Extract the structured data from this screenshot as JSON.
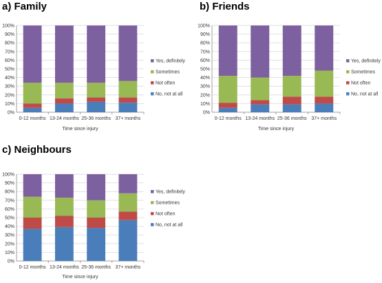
{
  "colors": {
    "no_not_at_all": "#4a7ebb",
    "not_often": "#be4b48",
    "sometimes": "#98b954",
    "yes_definitely": "#7d60a0"
  },
  "chart_data": [
    {
      "type": "bar",
      "stacked": true,
      "title": "a)  Family",
      "xlabel": "Time since injury",
      "categories": [
        "0-12 months",
        "13-24 months",
        "25-36 months",
        "37+ months"
      ],
      "yticks": [
        "0%",
        "10%",
        "20%",
        "30%",
        "40%",
        "50%",
        "60%",
        "70%",
        "80%",
        "90%",
        "100%"
      ],
      "ylim": [
        0,
        100
      ],
      "legend_position": "right",
      "series": [
        {
          "name": "No, not at all",
          "color_key": "no_not_at_all",
          "values": [
            5,
            10,
            12,
            11
          ]
        },
        {
          "name": "Not often",
          "color_key": "not_often",
          "values": [
            5,
            6,
            5,
            6
          ]
        },
        {
          "name": "Sometimes",
          "color_key": "sometimes",
          "values": [
            24,
            18,
            17,
            19
          ]
        },
        {
          "name": "Yes, definitely",
          "color_key": "yes_definitely",
          "values": [
            66,
            66,
            66,
            64
          ]
        }
      ]
    },
    {
      "type": "bar",
      "stacked": true,
      "title": "b) Friends",
      "xlabel": "Time since injury",
      "categories": [
        "0-12 months",
        "13-24 months",
        "25-36 months",
        "37+ months"
      ],
      "yticks": [
        "0%",
        "10%",
        "20%",
        "30%",
        "40%",
        "50%",
        "60%",
        "70%",
        "80%",
        "90%",
        "100%"
      ],
      "ylim": [
        0,
        100
      ],
      "legend_position": "right",
      "series": [
        {
          "name": "No, not at all",
          "color_key": "no_not_at_all",
          "values": [
            5,
            9,
            9,
            10
          ]
        },
        {
          "name": "Not often",
          "color_key": "not_often",
          "values": [
            6,
            5,
            9,
            8
          ]
        },
        {
          "name": "Sometimes",
          "color_key": "sometimes",
          "values": [
            31,
            26,
            24,
            30
          ]
        },
        {
          "name": "Yes, definitely",
          "color_key": "yes_definitely",
          "values": [
            58,
            60,
            58,
            52
          ]
        }
      ]
    },
    {
      "type": "bar",
      "stacked": true,
      "title": "c) Neighbours",
      "xlabel": "Time since injury",
      "categories": [
        "0-12 months",
        "13-24 months",
        "25-36 months",
        "37+ months"
      ],
      "yticks": [
        "0%",
        "10%",
        "20%",
        "30%",
        "40%",
        "50%",
        "60%",
        "70%",
        "80%",
        "90%",
        "100%"
      ],
      "ylim": [
        0,
        100
      ],
      "legend_position": "right",
      "series": [
        {
          "name": "No, not at all",
          "color_key": "no_not_at_all",
          "values": [
            37,
            39,
            38,
            47
          ]
        },
        {
          "name": "Not often",
          "color_key": "not_often",
          "values": [
            13,
            13,
            12,
            10
          ]
        },
        {
          "name": "Sometimes",
          "color_key": "sometimes",
          "values": [
            24,
            21,
            20,
            21
          ]
        },
        {
          "name": "Yes, definitely",
          "color_key": "yes_definitely",
          "values": [
            26,
            27,
            30,
            22
          ]
        }
      ]
    }
  ]
}
